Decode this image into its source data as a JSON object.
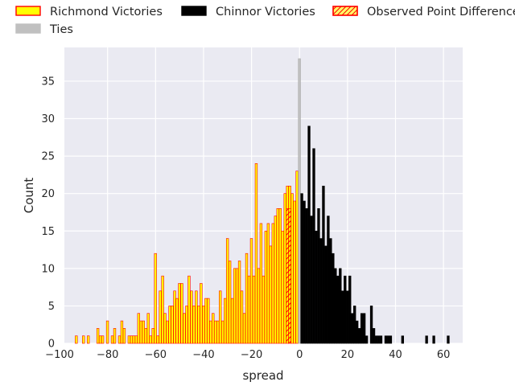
{
  "chart_data": {
    "type": "histogram",
    "xlabel": "spread",
    "ylabel": "Count",
    "xlim": [
      -98,
      68
    ],
    "ylim": [
      0,
      39.5
    ],
    "xticks": [
      -100,
      -80,
      -60,
      -40,
      -20,
      0,
      20,
      40,
      60
    ],
    "xtick_labels": [
      "−100",
      "−80",
      "−60",
      "−40",
      "−20",
      "0",
      "20",
      "40",
      "60"
    ],
    "yticks": [
      0,
      5,
      10,
      15,
      20,
      25,
      30,
      35
    ],
    "ytick_labels": [
      "0",
      "5",
      "10",
      "15",
      "20",
      "25",
      "30",
      "35"
    ],
    "grid": true,
    "legend_position": "top",
    "series": [
      {
        "name": "Richmond Victories",
        "color": "#ffff00",
        "edge_color": "#ff0000",
        "x": [
          -93,
          -90,
          -88,
          -84,
          -83,
          -82,
          -80,
          -78,
          -77,
          -75,
          -74,
          -73,
          -71,
          -70,
          -69,
          -68,
          -67,
          -66,
          -65,
          -64,
          -63,
          -62,
          -61,
          -60,
          -59,
          -58,
          -57,
          -56,
          -55,
          -54,
          -53,
          -52,
          -51,
          -50,
          -49,
          -48,
          -47,
          -46,
          -45,
          -44,
          -43,
          -42,
          -41,
          -40,
          -39,
          -38,
          -37,
          -36,
          -35,
          -34,
          -33,
          -32,
          -31,
          -30,
          -29,
          -28,
          -27,
          -26,
          -25,
          -24,
          -23,
          -22,
          -21,
          -20,
          -19,
          -18,
          -17,
          -16,
          -15,
          -14,
          -13,
          -12,
          -11,
          -10,
          -9,
          -8,
          -7,
          -6,
          -5,
          -4,
          -3,
          -2,
          -1
        ],
        "values": [
          1,
          1,
          1,
          2,
          1,
          1,
          3,
          1,
          2,
          1,
          3,
          2,
          1,
          1,
          1,
          1,
          4,
          3,
          3,
          2,
          4,
          1,
          2,
          12,
          1,
          7,
          9,
          4,
          3,
          5,
          5,
          7,
          6,
          8,
          8,
          4,
          5,
          9,
          7,
          5,
          7,
          5,
          8,
          5,
          6,
          6,
          3,
          4,
          3,
          3,
          7,
          3,
          6,
          14,
          11,
          6,
          10,
          10,
          11,
          7,
          4,
          12,
          9,
          14,
          9,
          24,
          10,
          16,
          9,
          15,
          16,
          13,
          16,
          17,
          18,
          18,
          15,
          20,
          21,
          21,
          20,
          19,
          23
        ]
      },
      {
        "name": "Ties",
        "color": "#c0c0c0",
        "edge_color": "#aaaaaa",
        "x": [
          0
        ],
        "values": [
          38
        ]
      },
      {
        "name": "Chinnor Victories",
        "color": "#000000",
        "edge_color": "#000000",
        "x": [
          1,
          2,
          3,
          4,
          5,
          6,
          7,
          8,
          9,
          10,
          11,
          12,
          13,
          14,
          15,
          16,
          17,
          18,
          19,
          20,
          21,
          22,
          23,
          24,
          25,
          26,
          27,
          28,
          29,
          30,
          31,
          32,
          33,
          34,
          35,
          36,
          37,
          38,
          39,
          40,
          43,
          53,
          56,
          62
        ],
        "values": [
          20,
          19,
          18,
          29,
          17,
          26,
          15,
          18,
          14,
          21,
          13,
          17,
          14,
          12,
          10,
          9,
          10,
          7,
          9,
          7,
          9,
          4,
          5,
          3,
          2,
          4,
          4,
          1,
          0,
          5,
          2,
          1,
          1,
          1,
          0,
          1,
          1,
          1,
          0,
          0,
          1,
          1,
          1,
          1
        ]
      }
    ],
    "observed_point_difference": {
      "name": "Observed Point Difference",
      "color": "#ffff66",
      "edge_color": "#ff0000",
      "hatch": "/",
      "x": [
        -5,
        -4
      ],
      "values": [
        18,
        18
      ]
    },
    "legend": [
      {
        "label": "Richmond Victories",
        "fill": "#ffff00",
        "edge": "#ff0000",
        "hatch": false
      },
      {
        "label": "Chinnor Victories",
        "fill": "#000000",
        "edge": "#000000",
        "hatch": false
      },
      {
        "label": "Observed Point Difference",
        "fill": "#ffff66",
        "edge": "#ff0000",
        "hatch": true
      },
      {
        "label": "Ties",
        "fill": "#c0c0c0",
        "edge": "#c0c0c0",
        "hatch": false
      }
    ]
  }
}
